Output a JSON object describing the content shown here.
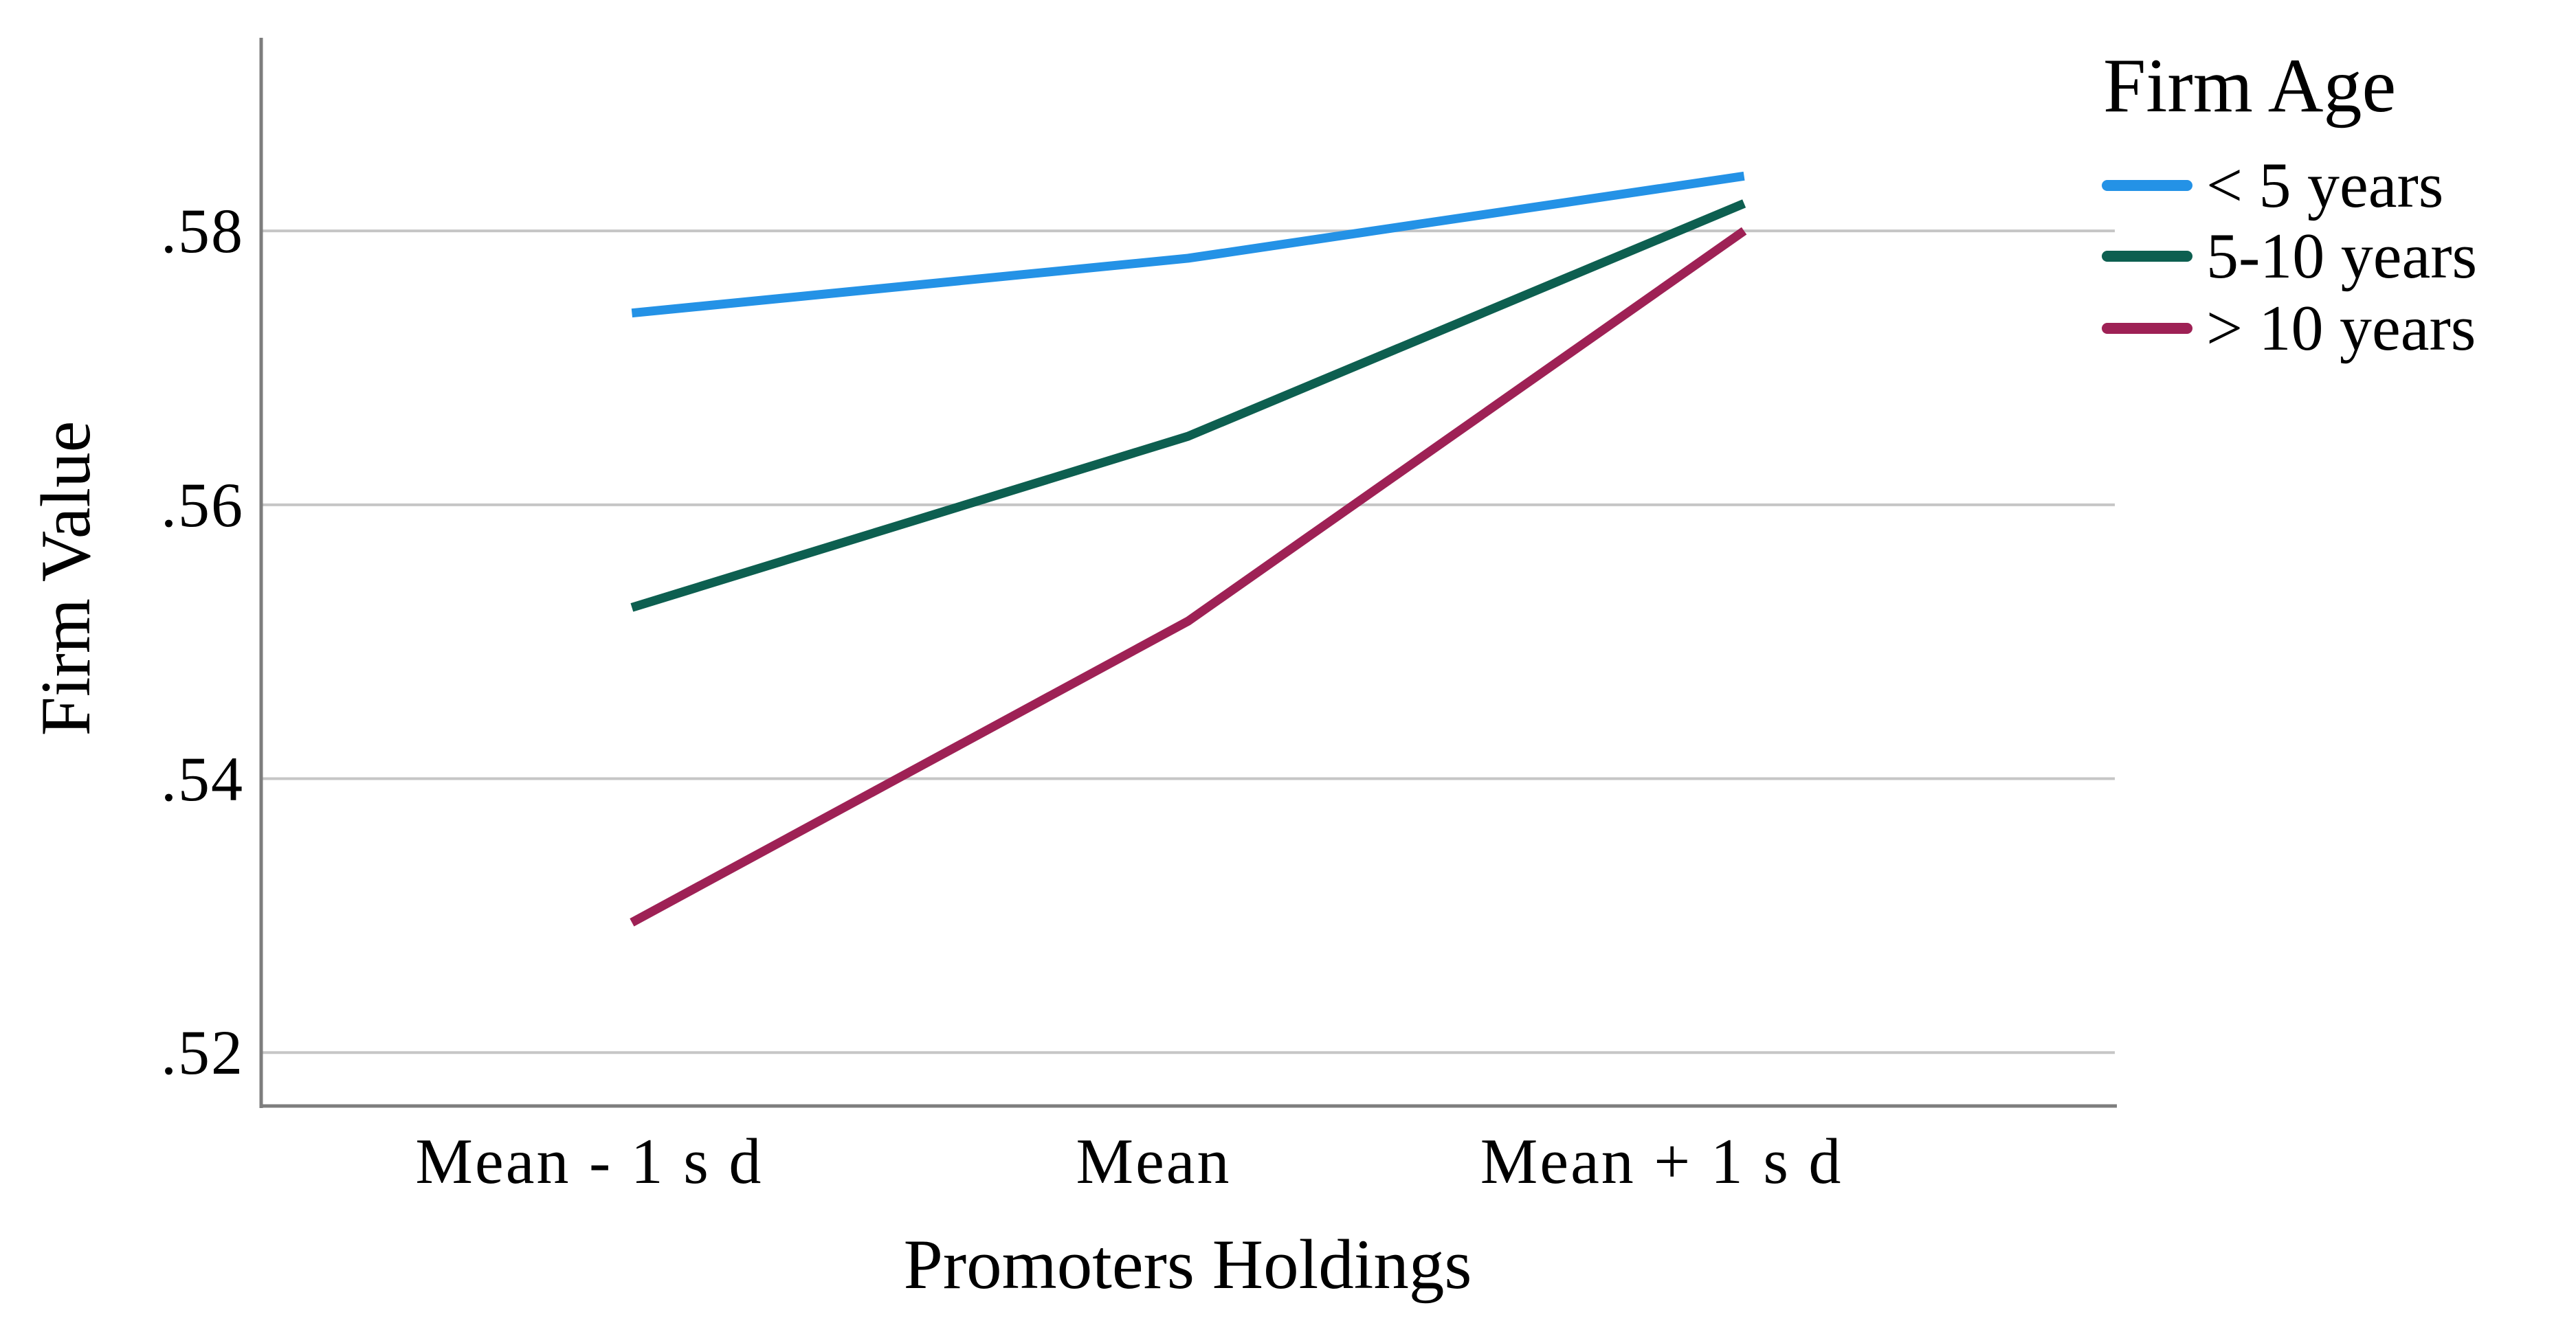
{
  "figure": {
    "background": "#ffffff",
    "text_color": "#000000"
  },
  "chart_data": {
    "type": "line",
    "title": "",
    "xlabel": "Promoters Holdings",
    "ylabel": "Firm Value",
    "categories": [
      "Mean - 1 s d",
      "Mean",
      "Mean + 1 s d"
    ],
    "series": [
      {
        "name": "< 5 years",
        "color": "#2492e6",
        "values": [
          0.574,
          0.578,
          0.584
        ]
      },
      {
        "name": "5-10 years",
        "color": "#0d5f50",
        "values": [
          0.5525,
          0.565,
          0.582
        ]
      },
      {
        "name": "> 10 years",
        "color": "#9e2155",
        "values": [
          0.5295,
          0.5515,
          0.58
        ]
      }
    ],
    "legend_title": "Firm Age",
    "legend_position": "top-right-outside",
    "y_ticks": [
      0.52,
      0.54,
      0.56,
      0.58
    ],
    "y_tick_labels": [
      ".52",
      ".54",
      ".56",
      ".58"
    ],
    "ylim": [
      0.5161,
      0.5941
    ],
    "grid": "horizontal-only",
    "gridline_color": "#c6c6c6",
    "axis_line_color": "#7d7d7d"
  }
}
